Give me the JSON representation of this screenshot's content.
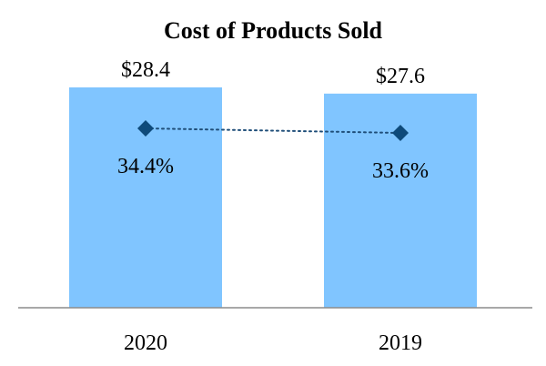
{
  "chart_data": {
    "type": "bar",
    "title": "Cost of Products Sold",
    "categories": [
      "2020",
      "2019"
    ],
    "series": [
      {
        "name": "Cost of Products Sold",
        "kind": "bar",
        "values": [
          28.4,
          27.6
        ],
        "labels": [
          "$28.4",
          "$27.6"
        ]
      },
      {
        "name": "Percent",
        "kind": "line",
        "values": [
          34.4,
          33.6
        ],
        "labels": [
          "34.4%",
          "33.6%"
        ]
      }
    ],
    "xlabel": "",
    "ylabel": "",
    "grid": false,
    "colors": {
      "bar": "#80c5ff",
      "marker": "#0e4a7a",
      "line": "#1f4e79",
      "axis": "#8c8c8c"
    }
  }
}
